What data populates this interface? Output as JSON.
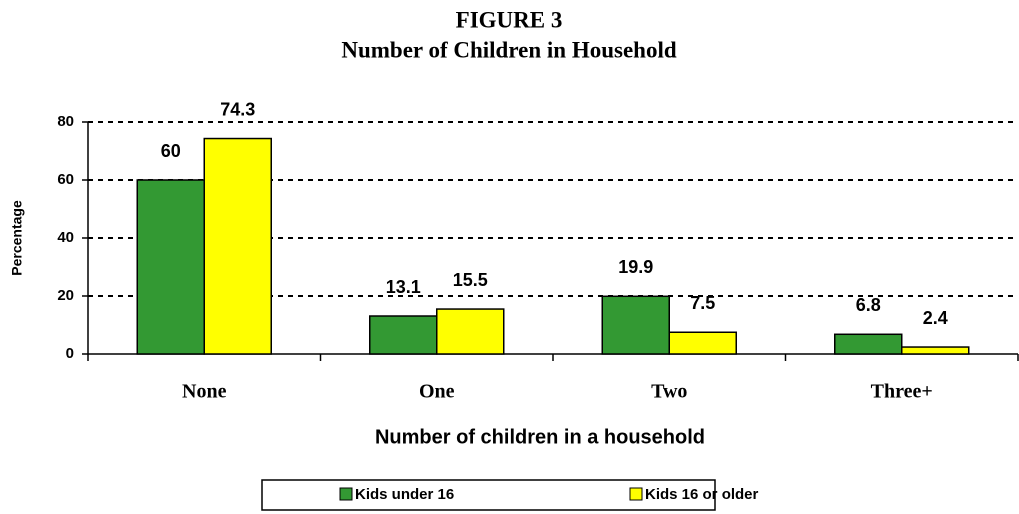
{
  "chart_data": {
    "type": "bar",
    "title": "FIGURE 3",
    "subtitle": "Number of Children in Household",
    "x_label": "Number of children in a household",
    "y_label": "Percentage",
    "categories": [
      "None",
      "One",
      "Two",
      "Three+"
    ],
    "series": [
      {
        "name": "Kids under 16",
        "color": "#339933",
        "values": [
          60,
          13.1,
          19.9,
          6.8
        ]
      },
      {
        "name": "Kids 16 or older",
        "color": "#ffff00",
        "values": [
          74.3,
          15.5,
          7.5,
          2.4
        ]
      }
    ],
    "ylim": [
      0,
      80
    ],
    "yticks": [
      0,
      20,
      40,
      60,
      80
    ],
    "grid": true,
    "legend": "bottom"
  }
}
